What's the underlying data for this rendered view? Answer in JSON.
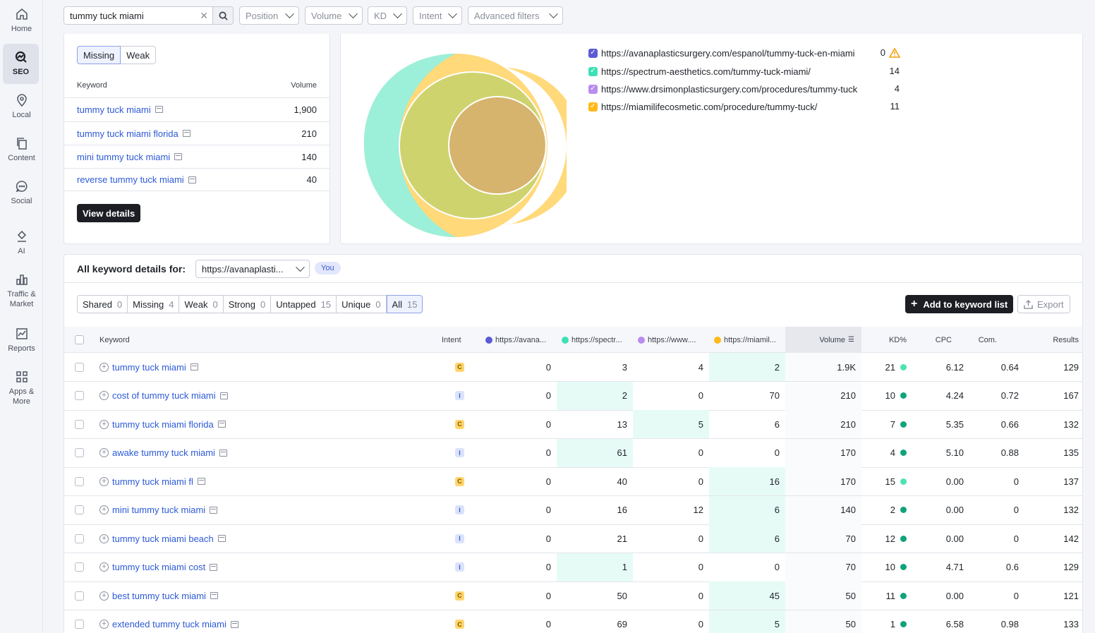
{
  "sidebar": {
    "items": [
      {
        "label": "Home",
        "icon": "home-icon"
      },
      {
        "label": "SEO",
        "icon": "seo-icon",
        "active": true
      },
      {
        "label": "Local",
        "icon": "pin-icon"
      },
      {
        "label": "Content",
        "icon": "content-icon"
      },
      {
        "label": "Social",
        "icon": "chat-icon"
      },
      {
        "label": "AI",
        "icon": "ai-icon"
      },
      {
        "label": "Traffic & Market",
        "icon": "bar-chart-icon"
      },
      {
        "label": "Reports",
        "icon": "reports-icon"
      },
      {
        "label": "Apps & More",
        "icon": "grid-icon"
      }
    ]
  },
  "search": {
    "value": "tummy tuck miami"
  },
  "filters": {
    "position": "Position",
    "volume": "Volume",
    "kd": "KD",
    "intent": "Intent",
    "advanced": "Advanced filters"
  },
  "gap_card": {
    "tabs": {
      "missing": "Missing",
      "weak": "Weak"
    },
    "col_keyword": "Keyword",
    "col_volume": "Volume",
    "rows": [
      {
        "keyword": "tummy tuck miami",
        "volume": "1,900"
      },
      {
        "keyword": "tummy tuck miami florida",
        "volume": "210"
      },
      {
        "keyword": "mini tummy tuck miami",
        "volume": "140"
      },
      {
        "keyword": "reverse tummy tuck miami",
        "volume": "40"
      }
    ],
    "view_details": "View details"
  },
  "venn": {
    "colors": {
      "avana": "#5b5bd6",
      "spectrum": "#3ee0b5",
      "drsimon": "#b98cf0",
      "miamilife": "#ffb91a"
    },
    "domains": [
      {
        "url": "https://avanaplasticsurgery.com/espanol/tummy-tuck-en-miami",
        "count": "0",
        "warning": true
      },
      {
        "url": "https://spectrum-aesthetics.com/tummy-tuck-miami/",
        "count": "14"
      },
      {
        "url": "https://www.drsimonplasticsurgery.com/procedures/tummy-tuck",
        "count": "4"
      },
      {
        "url": "https://miamilifecosmetic.com/procedure/tummy-tuck/",
        "count": "11"
      }
    ]
  },
  "details": {
    "title": "All keyword details for:",
    "select_value": "https://avanaplasti...",
    "you_badge": "You",
    "segments": [
      {
        "label": "Shared",
        "count": "0"
      },
      {
        "label": "Missing",
        "count": "4"
      },
      {
        "label": "Weak",
        "count": "0"
      },
      {
        "label": "Strong",
        "count": "0"
      },
      {
        "label": "Untapped",
        "count": "15"
      },
      {
        "label": "Unique",
        "count": "0"
      },
      {
        "label": "All",
        "count": "15",
        "selected": true
      }
    ],
    "add_button": "Add to keyword list",
    "export_button": "Export"
  },
  "table": {
    "headers": {
      "keyword": "Keyword",
      "intent": "Intent",
      "col1": "https://avana...",
      "col2": "https://spectr...",
      "col3": "https://www....",
      "col4": "https://miamil...",
      "volume": "Volume",
      "kd": "KD%",
      "cpc": "CPC",
      "com": "Com.",
      "results": "Results"
    },
    "rows": [
      {
        "keyword": "tummy tuck miami",
        "intent": "C",
        "c1": "0",
        "c2": "3",
        "c3": "4",
        "c4": "2",
        "hl": 4,
        "volume": "1.9K",
        "kd": "21",
        "kd_color": "#4ee1b5",
        "cpc": "6.12",
        "com": "0.64",
        "results": "129"
      },
      {
        "keyword": "cost of tummy tuck miami",
        "intent": "I",
        "c1": "0",
        "c2": "2",
        "c3": "0",
        "c4": "70",
        "hl": 2,
        "volume": "210",
        "kd": "10",
        "kd_color": "#10a37a",
        "cpc": "4.24",
        "com": "0.72",
        "results": "167"
      },
      {
        "keyword": "tummy tuck miami florida",
        "intent": "C",
        "c1": "0",
        "c2": "13",
        "c3": "5",
        "c4": "6",
        "hl": 3,
        "volume": "210",
        "kd": "7",
        "kd_color": "#10a37a",
        "cpc": "5.35",
        "com": "0.66",
        "results": "132"
      },
      {
        "keyword": "awake tummy tuck miami",
        "intent": "I",
        "c1": "0",
        "c2": "61",
        "c3": "0",
        "c4": "0",
        "hl": 2,
        "volume": "170",
        "kd": "4",
        "kd_color": "#10a37a",
        "cpc": "5.10",
        "com": "0.88",
        "results": "135"
      },
      {
        "keyword": "tummy tuck miami fl",
        "intent": "C",
        "c1": "0",
        "c2": "40",
        "c3": "0",
        "c4": "16",
        "hl": 4,
        "volume": "170",
        "kd": "15",
        "kd_color": "#4ee1b5",
        "cpc": "0.00",
        "com": "0",
        "results": "137"
      },
      {
        "keyword": "mini tummy tuck miami",
        "intent": "I",
        "c1": "0",
        "c2": "16",
        "c3": "12",
        "c4": "6",
        "hl": 4,
        "volume": "140",
        "kd": "2",
        "kd_color": "#10a37a",
        "cpc": "0.00",
        "com": "0",
        "results": "132"
      },
      {
        "keyword": "tummy tuck miami beach",
        "intent": "I",
        "c1": "0",
        "c2": "21",
        "c3": "0",
        "c4": "6",
        "hl": 4,
        "volume": "70",
        "kd": "12",
        "kd_color": "#10a37a",
        "cpc": "0.00",
        "com": "0",
        "results": "142"
      },
      {
        "keyword": "tummy tuck miami cost",
        "intent": "I",
        "c1": "0",
        "c2": "1",
        "c3": "0",
        "c4": "0",
        "hl": 2,
        "volume": "70",
        "kd": "10",
        "kd_color": "#10a37a",
        "cpc": "4.71",
        "com": "0.6",
        "results": "129"
      },
      {
        "keyword": "best tummy tuck miami",
        "intent": "C",
        "c1": "0",
        "c2": "50",
        "c3": "0",
        "c4": "45",
        "hl": 4,
        "volume": "50",
        "kd": "11",
        "kd_color": "#10a37a",
        "cpc": "0.00",
        "com": "0",
        "results": "121"
      },
      {
        "keyword": "extended tummy tuck miami",
        "intent": "C",
        "c1": "0",
        "c2": "69",
        "c3": "0",
        "c4": "5",
        "hl": 4,
        "volume": "50",
        "kd": "1",
        "kd_color": "#10a37a",
        "cpc": "6.58",
        "com": "0.98",
        "results": "133"
      }
    ]
  }
}
